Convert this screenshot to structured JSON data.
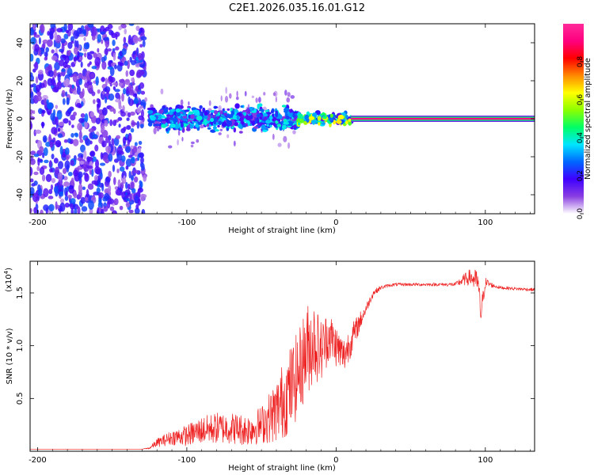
{
  "title": "C2E1.2026.035.16.01.G12",
  "chart_data": [
    {
      "type": "heatmap",
      "name": "spectrogram",
      "xlabel": "Height of straight line (km)",
      "ylabel": "Frequency (Hz)",
      "xlim": [
        -205,
        133
      ],
      "ylim": [
        -50,
        50
      ],
      "xticks": [
        -200,
        -100,
        0,
        100
      ],
      "xtick_labels": [
        "-200",
        "-100",
        "0",
        "100"
      ],
      "yticks": [
        -40,
        -20,
        0,
        20,
        40
      ],
      "ytick_labels": [
        "-40",
        "-20",
        "0",
        "20",
        "40"
      ],
      "noise_region": [
        -205,
        -128
      ],
      "colorbar": {
        "label": "Normalized spectral amplitude",
        "range": [
          0,
          1
        ],
        "ticks": [
          0.0,
          0.2,
          0.4,
          0.6,
          0.8
        ],
        "tick_labels": [
          "0.0",
          "0.2",
          "0.4",
          "0.6",
          "0.8"
        ],
        "colors": [
          "#ffffff",
          "#8a3fe0",
          "#3f00ff",
          "#0066ff",
          "#00e5ff",
          "#00ff66",
          "#8cff00",
          "#ffff00",
          "#ff8800",
          "#ff0000",
          "#ff007f",
          "#ff2a9a"
        ]
      },
      "signal_segments": [
        {
          "x_range": [
            -125,
            -25
          ],
          "freq_spread_hz": 6,
          "amplitude": 0.35
        },
        {
          "x_range": [
            -25,
            10
          ],
          "freq_spread_hz": 3,
          "amplitude": 0.6
        },
        {
          "x_range": [
            10,
            133
          ],
          "freq_spread_hz": 1,
          "amplitude": 0.95
        }
      ]
    },
    {
      "type": "line",
      "name": "snr",
      "xlabel": "Height of straight line (km)",
      "ylabel": "SNR (10 * v/v)",
      "multiplier_label": "(x10",
      "multiplier_exp": "4",
      "multiplier_close": ")",
      "xlim": [
        -205,
        133
      ],
      "ylim": [
        0,
        1.8
      ],
      "xticks": [
        -200,
        -100,
        0,
        100
      ],
      "xtick_labels": [
        "-200",
        "-100",
        "0",
        "100"
      ],
      "yticks": [
        0.5,
        1.0,
        1.5
      ],
      "ytick_labels": [
        "0.5",
        "1.0",
        "1.5"
      ],
      "color": "#ee2222",
      "series": [
        {
          "name": "SNR",
          "x": [
            -205,
            -130,
            -125,
            -120,
            -110,
            -100,
            -90,
            -80,
            -70,
            -60,
            -50,
            -40,
            -35,
            -30,
            -25,
            -20,
            -15,
            -10,
            -5,
            0,
            5,
            10,
            15,
            20,
            25,
            30,
            35,
            40,
            50,
            60,
            70,
            80,
            85,
            90,
            95,
            97,
            100,
            105,
            110,
            120,
            133
          ],
          "y": [
            0.02,
            0.02,
            0.03,
            0.08,
            0.13,
            0.15,
            0.2,
            0.22,
            0.22,
            0.2,
            0.25,
            0.38,
            0.5,
            0.6,
            0.75,
            0.95,
            1.05,
            0.95,
            1.1,
            1.0,
            0.9,
            1.05,
            1.2,
            1.35,
            1.5,
            1.55,
            1.57,
            1.58,
            1.58,
            1.58,
            1.58,
            1.58,
            1.62,
            1.65,
            1.6,
            1.3,
            1.6,
            1.57,
            1.55,
            1.54,
            1.53
          ],
          "noise_amp": [
            0.0,
            0.0,
            0.01,
            0.04,
            0.07,
            0.1,
            0.13,
            0.15,
            0.15,
            0.15,
            0.18,
            0.3,
            0.38,
            0.42,
            0.4,
            0.45,
            0.4,
            0.3,
            0.25,
            0.2,
            0.18,
            0.15,
            0.1,
            0.05,
            0.03,
            0.02,
            0.015,
            0.015,
            0.015,
            0.015,
            0.015,
            0.02,
            0.05,
            0.08,
            0.12,
            0.12,
            0.05,
            0.02,
            0.015,
            0.015,
            0.015
          ]
        }
      ]
    }
  ]
}
